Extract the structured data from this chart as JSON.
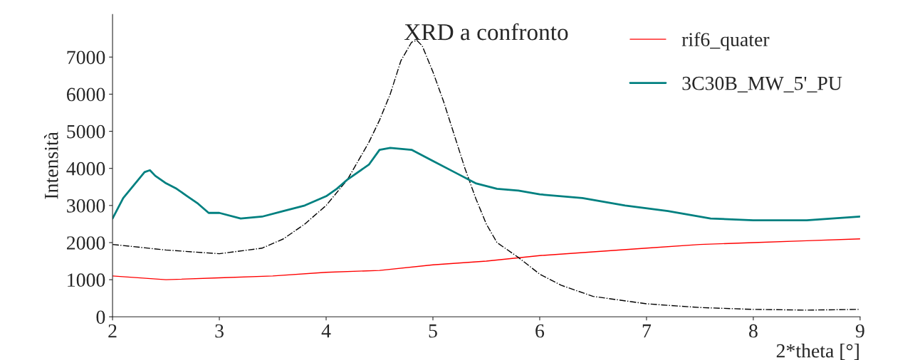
{
  "chart_data": {
    "type": "line",
    "title": "XRD a confronto",
    "xlabel": "2*theta [°]",
    "ylabel": "Intensità",
    "xlim": [
      2,
      9
    ],
    "xticks": [
      2,
      3,
      4,
      5,
      6,
      7,
      8,
      9
    ],
    "ylim": [
      0,
      8150
    ],
    "yticks": [
      0,
      1000,
      2000,
      3000,
      4000,
      5000,
      6000,
      7000
    ],
    "grid": false,
    "legend": "top right",
    "marker": "none",
    "series": [
      {
        "name": "rif6_quater",
        "color": "#ff0000",
        "line_style": "solid",
        "x": [
          2,
          2.5,
          3,
          3.5,
          4,
          4.5,
          5,
          5.5,
          6,
          6.5,
          7,
          7.5,
          8,
          8.5,
          9
        ],
        "values": [
          1100,
          1000,
          1050,
          1100,
          1200,
          1250,
          1400,
          1500,
          1650,
          1750,
          1850,
          1950,
          2000,
          2050,
          2100
        ]
      },
      {
        "color": "#000000",
        "line_style": "dashdot",
        "x": [
          2,
          2.5,
          3,
          3.4,
          3.6,
          3.8,
          4,
          4.2,
          4.4,
          4.5,
          4.6,
          4.7,
          4.8,
          4.85,
          4.9,
          5,
          5.1,
          5.2,
          5.3,
          5.4,
          5.5,
          5.6,
          5.8,
          6,
          6.2,
          6.5,
          7,
          7.5,
          8,
          8.5,
          9
        ],
        "values": [
          1950,
          1800,
          1700,
          1850,
          2100,
          2500,
          3000,
          3700,
          4700,
          5300,
          6000,
          6900,
          7400,
          7450,
          7300,
          6600,
          5800,
          4900,
          4000,
          3200,
          2500,
          2000,
          1600,
          1150,
          850,
          550,
          350,
          250,
          200,
          180,
          200
        ]
      },
      {
        "name": "3C30B_MW_5'_PU",
        "color": "#008080",
        "line_style": "solid",
        "x": [
          2,
          2.1,
          2.2,
          2.3,
          2.35,
          2.4,
          2.5,
          2.6,
          2.7,
          2.8,
          2.9,
          3,
          3.2,
          3.4,
          3.6,
          3.8,
          4,
          4.1,
          4.2,
          4.4,
          4.5,
          4.6,
          4.8,
          5,
          5.2,
          5.4,
          5.6,
          5.8,
          6,
          6.4,
          6.8,
          7.2,
          7.6,
          8,
          8.5,
          9
        ],
        "values": [
          2650,
          3200,
          3550,
          3900,
          3950,
          3800,
          3600,
          3450,
          3250,
          3050,
          2800,
          2800,
          2650,
          2700,
          2850,
          3000,
          3250,
          3450,
          3700,
          4100,
          4500,
          4550,
          4500,
          4200,
          3900,
          3600,
          3450,
          3400,
          3300,
          3200,
          3000,
          2850,
          2650,
          2600,
          2600,
          2700
        ]
      }
    ]
  }
}
